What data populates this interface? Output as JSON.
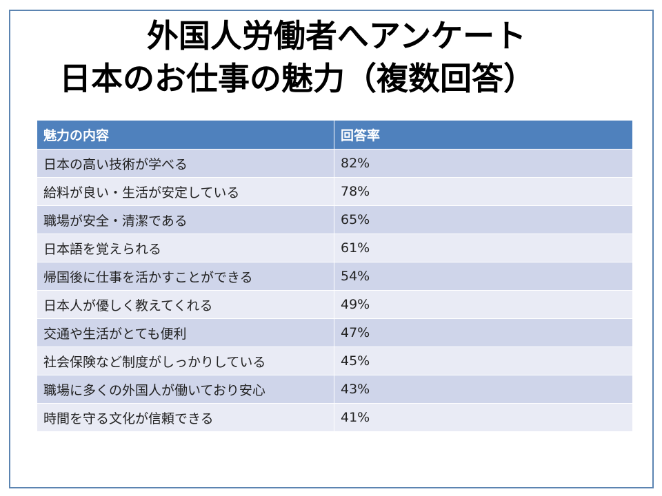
{
  "title": {
    "line1": "外国人労働者へアンケート",
    "line2": "日本のお仕事の魅力（複数回答）"
  },
  "table": {
    "headers": [
      "魅力の内容",
      "回答率"
    ],
    "rows": [
      {
        "item": "日本の高い技術が学べる",
        "rate": "82%"
      },
      {
        "item": "給料が良い・生活が安定している",
        "rate": "78%"
      },
      {
        "item": "職場が安全・清潔である",
        "rate": "65%"
      },
      {
        "item": "日本語を覚えられる",
        "rate": "61%"
      },
      {
        "item": "帰国後に仕事を活かすことができる",
        "rate": "54%"
      },
      {
        "item": "日本人が優しく教えてくれる",
        "rate": "49%"
      },
      {
        "item": "交通や生活がとても便利",
        "rate": "47%"
      },
      {
        "item": "社会保険など制度がしっかりしている",
        "rate": "45%"
      },
      {
        "item": "職場に多くの外国人が働いており安心",
        "rate": "43%"
      },
      {
        "item": "時間を守る文化が信頼できる",
        "rate": "41%"
      }
    ]
  },
  "colors": {
    "header_bg": "#4f81bd",
    "row_odd_bg": "#cfd5ea",
    "row_even_bg": "#e9ebf5",
    "frame_border": "#5b84b1"
  }
}
